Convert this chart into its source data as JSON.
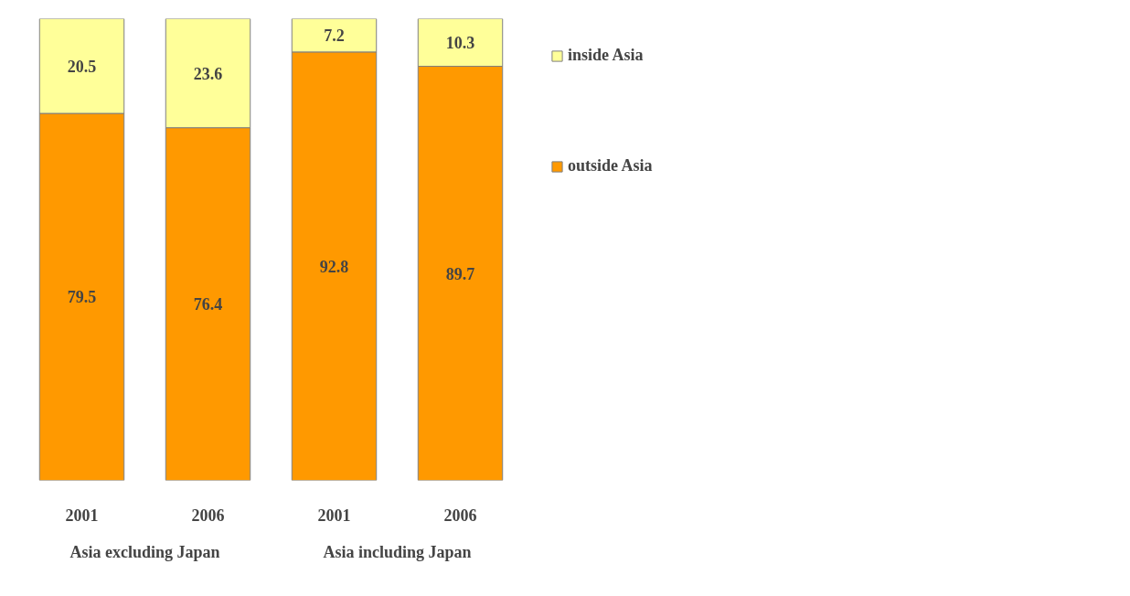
{
  "chart_data": {
    "type": "bar",
    "stacked": true,
    "categories": [
      "2001",
      "2006",
      "2001",
      "2006"
    ],
    "series": [
      {
        "name": "outside Asia",
        "color": "#ff9900",
        "values": [
          79.5,
          76.4,
          92.8,
          89.7
        ]
      },
      {
        "name": "inside Asia",
        "color": "#ffff99",
        "values": [
          20.5,
          23.6,
          7.2,
          10.3
        ]
      }
    ],
    "annotations": [
      "Asia excluding Japan",
      "Asia including Japan"
    ],
    "data_labels": true,
    "legend": "right",
    "grid": false
  }
}
